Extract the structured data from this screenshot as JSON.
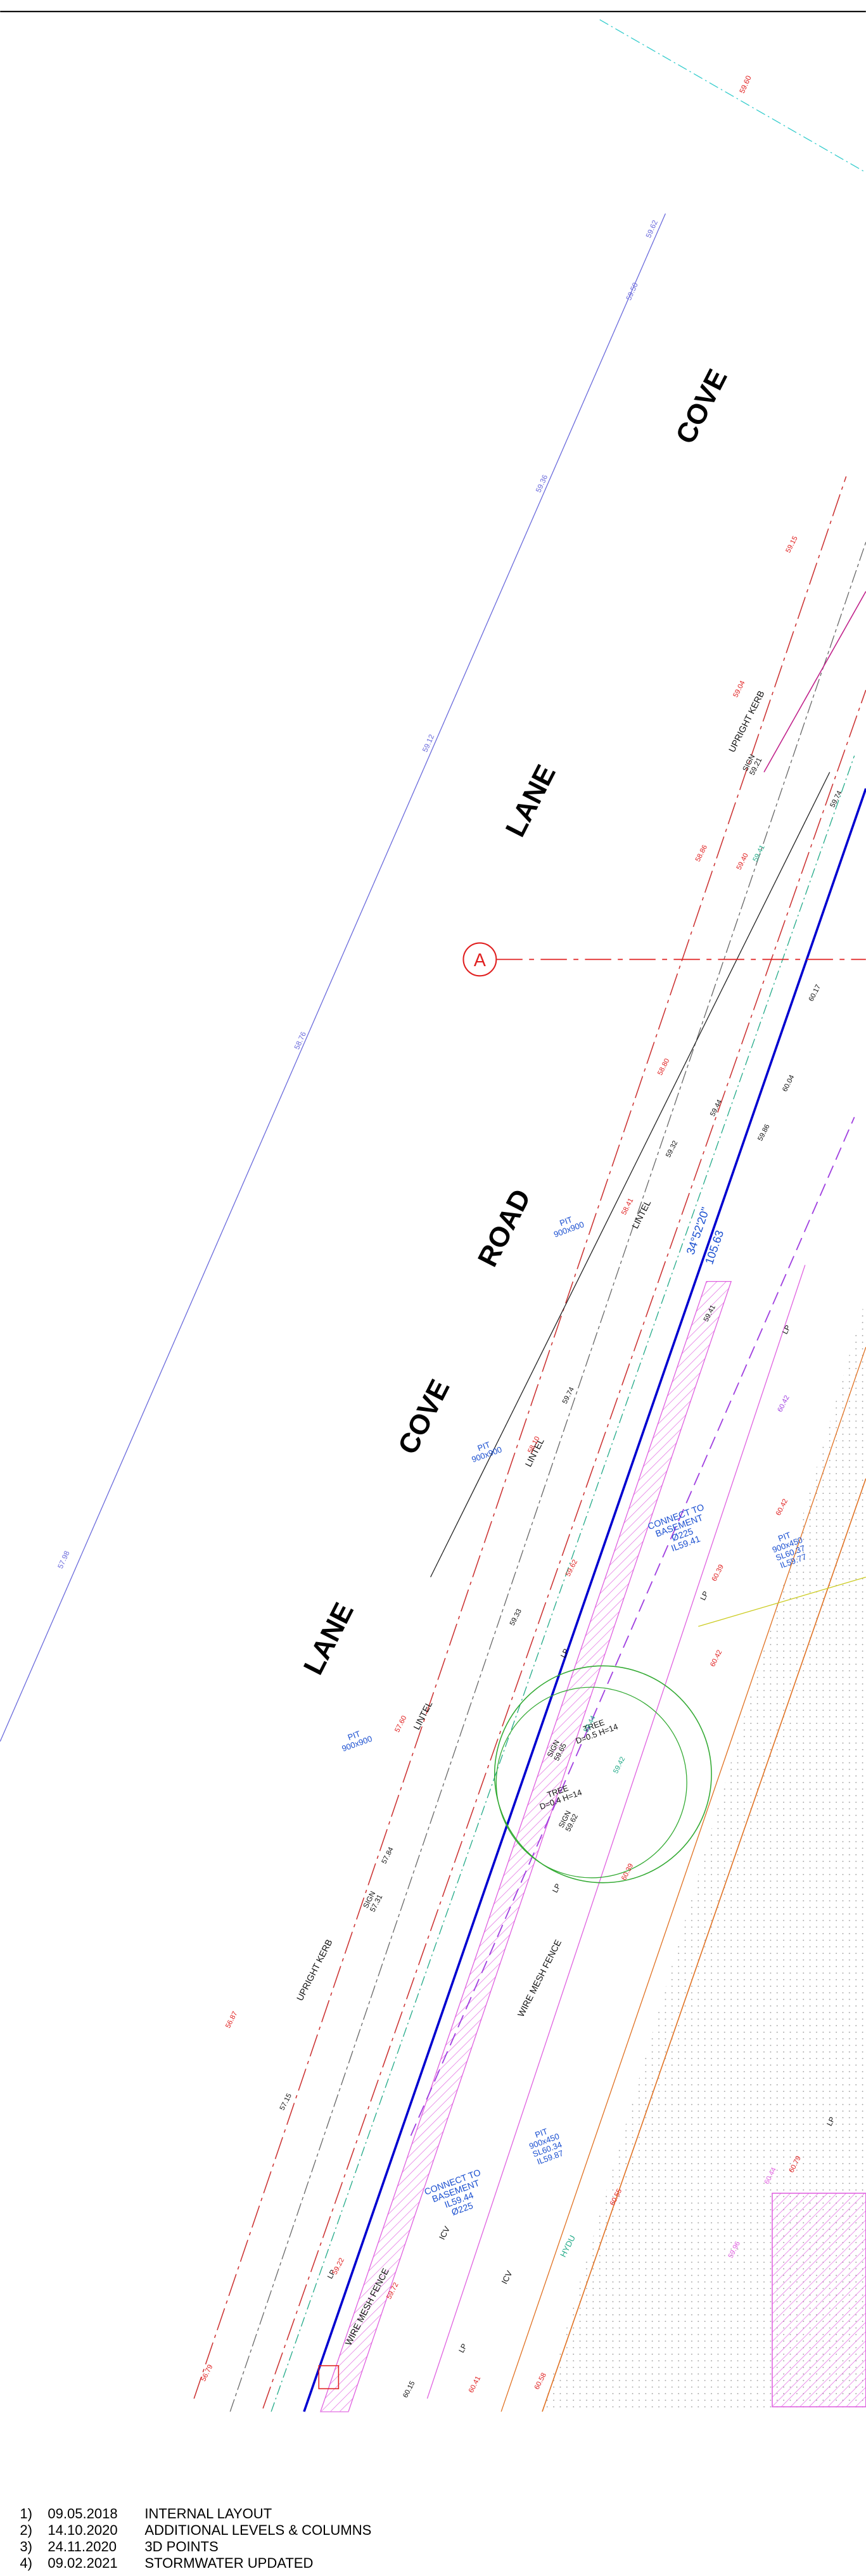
{
  "street_names": [
    "COVE",
    "LANE",
    "ROAD",
    "COVE",
    "LANE"
  ],
  "boundary_levels": [
    "59.62",
    "59.50",
    "59.36",
    "59.12",
    "58.76",
    "57.98",
    "59.60"
  ],
  "annotations": [
    [
      "UPRIGHT KERB"
    ],
    [
      "UPRIGHT KERB"
    ],
    [
      "PIT",
      "900x900"
    ],
    [
      "PIT",
      "900x900"
    ],
    [
      "PIT",
      "900x900"
    ],
    [
      "LINTEL"
    ],
    [
      "LINTEL"
    ],
    [
      "LINTEL"
    ],
    [
      "SIGN",
      "59.21"
    ],
    [
      "SIGN",
      "57.31"
    ],
    [
      "CONNECT TO",
      "BASEMENT",
      "Ø225",
      "IL59.41"
    ],
    [
      "PIT",
      "900x450",
      "SL60.37",
      "IL59.77"
    ],
    [
      "TREE",
      "D=0.5 H=14"
    ],
    [
      "TREE",
      "D=0.4 H=14"
    ],
    [
      "SIGN",
      "59.65"
    ],
    [
      "SIGN",
      "59.62"
    ],
    [
      "WIRE MESH FENCE"
    ],
    [
      "WIRE MESH FENCE"
    ],
    [
      "CONNECT TO",
      "BASEMENT",
      "IL59.44",
      "Ø225"
    ],
    [
      "PIT",
      "900x450",
      "SL60.34",
      "IL59.87"
    ],
    [
      "HYDU"
    ],
    [
      "ICV"
    ],
    [
      "ICV"
    ],
    [
      "34°52'20\""
    ],
    [
      "105.63"
    ]
  ],
  "section_marker": "A",
  "light_poles": [
    "LP",
    "LP",
    "LP",
    "LP",
    "LP",
    "LP",
    "LP"
  ],
  "levels": [
    "59.15",
    "59.04",
    "58.86",
    "58.80",
    "59.41",
    "59.74",
    "59.44",
    "59.86",
    "59.32",
    "60.04",
    "60.17",
    "59.74",
    "59.41",
    "59.33",
    "57.84",
    "57.15",
    "56.87",
    "56.79",
    "57.60",
    "58.10",
    "58.41",
    "59.40",
    "60.42",
    "60.39",
    "60.42",
    "60.39",
    "59.72",
    "59.22",
    "59.62",
    "60.41",
    "59.42",
    "59.44",
    "60.15",
    "60.58",
    "60.55",
    "60.79",
    "59.96",
    "60.44",
    "60.42"
  ],
  "revisions": [
    {
      "num": "1)",
      "date": "09.05.2018",
      "desc": "INTERNAL LAYOUT"
    },
    {
      "num": "2)",
      "date": "14.10.2020",
      "desc": "ADDITIONAL LEVELS & COLUMNS"
    },
    {
      "num": "3)",
      "date": "24.11.2020",
      "desc": "3D POINTS"
    },
    {
      "num": "4)",
      "date": "09.02.2021",
      "desc": "STORMWATER UPDATED"
    }
  ]
}
